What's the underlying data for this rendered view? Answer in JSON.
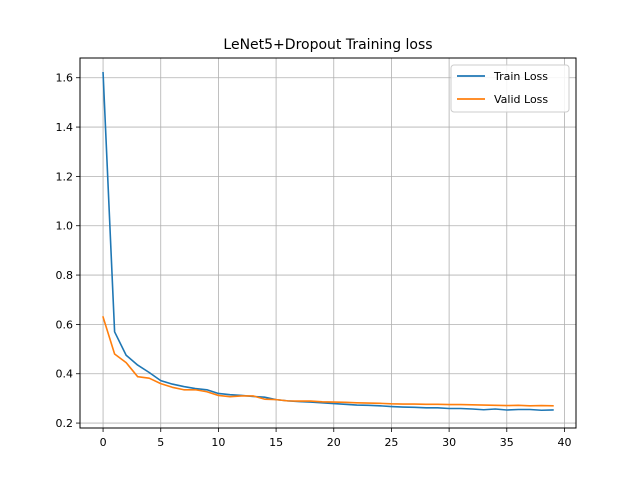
{
  "chart_data": {
    "type": "line",
    "title": "LeNet5+Dropout Training loss",
    "xlabel": "",
    "ylabel": "",
    "xlim": [
      -2,
      41
    ],
    "ylim": [
      0.18,
      1.68
    ],
    "xticks": [
      0,
      5,
      10,
      15,
      20,
      25,
      30,
      35,
      40
    ],
    "yticks": [
      0.2,
      0.4,
      0.6,
      0.8,
      1.0,
      1.2,
      1.4,
      1.6
    ],
    "grid": true,
    "legend_position": "top-right",
    "x": [
      0,
      1,
      2,
      3,
      4,
      5,
      6,
      7,
      8,
      9,
      10,
      11,
      12,
      13,
      14,
      15,
      16,
      17,
      18,
      19,
      20,
      21,
      22,
      23,
      24,
      25,
      26,
      27,
      28,
      29,
      30,
      31,
      32,
      33,
      34,
      35,
      36,
      37,
      38,
      39
    ],
    "series": [
      {
        "name": "Train Loss",
        "color": "#1f77b4",
        "values": [
          1.62,
          0.57,
          0.475,
          0.435,
          0.405,
          0.372,
          0.358,
          0.348,
          0.34,
          0.335,
          0.32,
          0.315,
          0.312,
          0.308,
          0.305,
          0.295,
          0.29,
          0.287,
          0.285,
          0.282,
          0.279,
          0.276,
          0.273,
          0.272,
          0.27,
          0.267,
          0.265,
          0.264,
          0.262,
          0.262,
          0.259,
          0.259,
          0.257,
          0.254,
          0.257,
          0.253,
          0.255,
          0.255,
          0.252,
          0.253
        ]
      },
      {
        "name": "Valid Loss",
        "color": "#ff7f0e",
        "values": [
          0.63,
          0.48,
          0.445,
          0.388,
          0.382,
          0.36,
          0.345,
          0.335,
          0.335,
          0.327,
          0.312,
          0.307,
          0.31,
          0.31,
          0.297,
          0.295,
          0.29,
          0.289,
          0.289,
          0.286,
          0.285,
          0.284,
          0.282,
          0.281,
          0.28,
          0.278,
          0.277,
          0.277,
          0.276,
          0.276,
          0.275,
          0.275,
          0.274,
          0.273,
          0.272,
          0.271,
          0.272,
          0.27,
          0.271,
          0.27
        ]
      }
    ]
  }
}
